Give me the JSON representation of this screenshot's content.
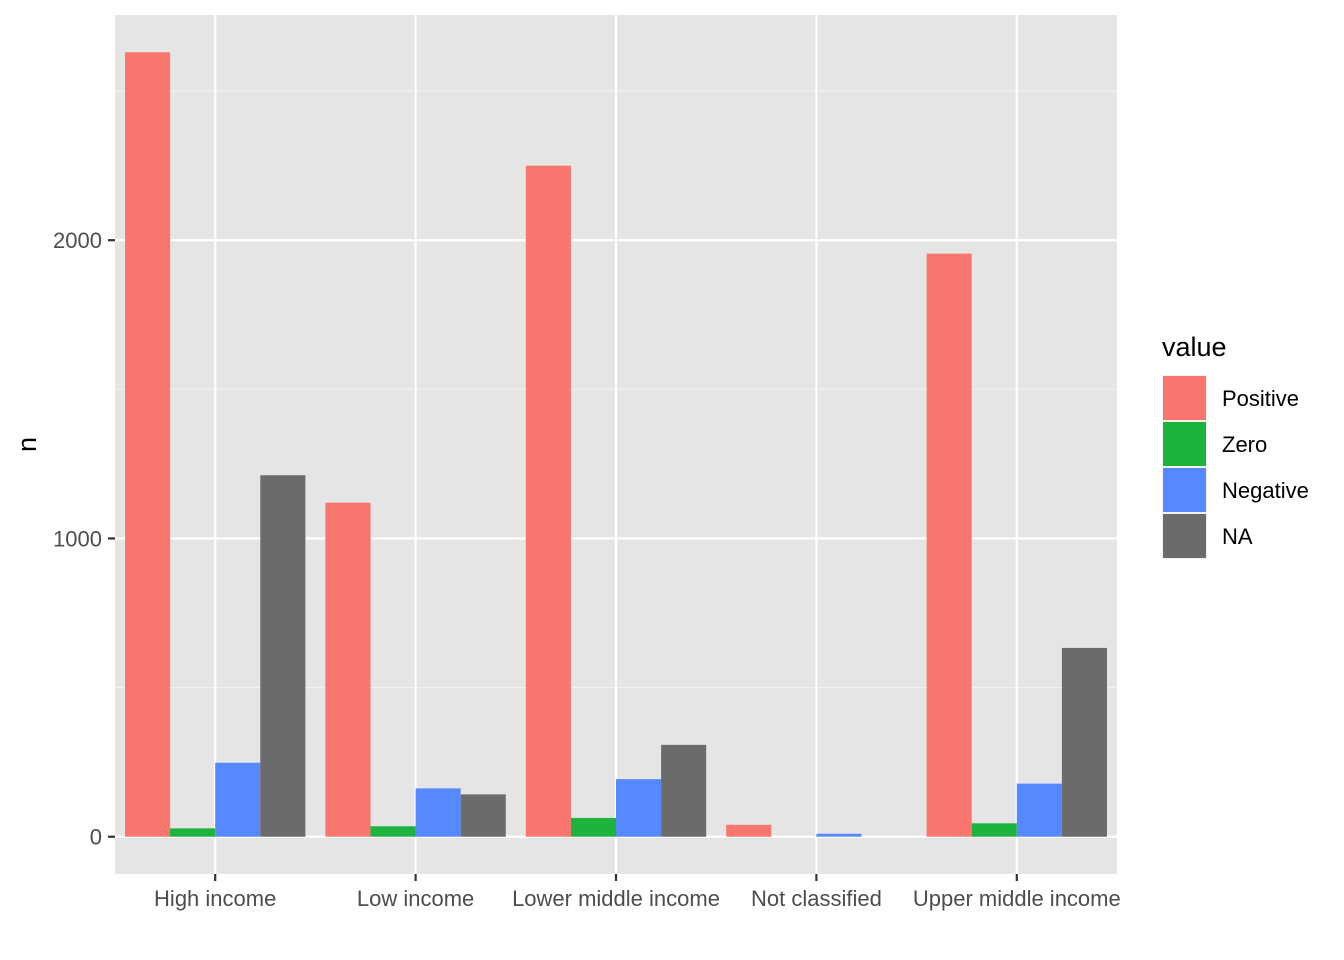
{
  "chart_data": {
    "type": "bar",
    "title": "",
    "xlabel": "",
    "ylabel": "n",
    "categories": [
      "High income",
      "Low income",
      "Lower middle income",
      "Not classified",
      "Upper middle income"
    ],
    "series": [
      {
        "name": "Positive",
        "color": "#F8766D",
        "values": [
          2630,
          1120,
          2250,
          40,
          1955
        ]
      },
      {
        "name": "Zero",
        "color": "#1DB33C",
        "values": [
          28,
          35,
          63,
          null,
          45
        ]
      },
      {
        "name": "Negative",
        "color": "#5689FF",
        "values": [
          248,
          162,
          193,
          10,
          178
        ]
      },
      {
        "name": "NA",
        "color": "#6B6B6B",
        "values": [
          1212,
          142,
          308,
          null,
          633
        ]
      }
    ],
    "ylim": [
      -125,
      2755
    ],
    "yticks": [
      0,
      1000,
      2000
    ],
    "grid": true,
    "panel_color": "#E5E5E5",
    "legend": {
      "title": "value",
      "position": "right"
    }
  }
}
